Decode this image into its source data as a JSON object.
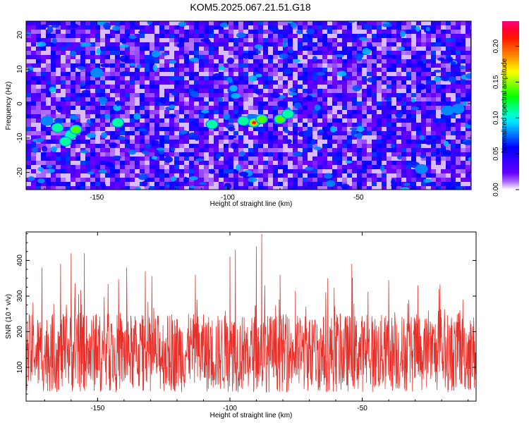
{
  "figure": {
    "title": "KOM5.2025.067.21.51.G18"
  },
  "chart_data": [
    {
      "type": "heatmap",
      "xlabel": "Height of straight line (km)",
      "ylabel": "Frequency (Hz)",
      "xlim": [
        -177,
        -7
      ],
      "ylim": [
        -25,
        24
      ],
      "x_ticks": [
        -150,
        -100,
        -50
      ],
      "y_ticks": [
        -20,
        -10,
        0,
        10,
        20
      ],
      "colorbar": {
        "label": "Normalized spectral amplitude",
        "range": [
          0,
          0.235
        ],
        "ticks": [
          0,
          0.05,
          0.1,
          0.15,
          0.2
        ],
        "tick_labels": [
          "0.00",
          "0.05",
          "0.10",
          "0.15",
          "0.20"
        ],
        "colormap": [
          "#ffffff",
          "#7000ff",
          "#0000ff",
          "#00ffff",
          "#00ff00",
          "#ffff00",
          "#ff8000",
          "#ff0000",
          "#ff0080"
        ]
      },
      "hotspots": [
        {
          "x": -90,
          "y": -5.5,
          "value": 0.22
        },
        {
          "x": -87,
          "y": -4.5,
          "value": 0.15
        },
        {
          "x": -80,
          "y": -4.5,
          "value": 0.14
        },
        {
          "x": -94,
          "y": -5,
          "value": 0.12
        },
        {
          "x": -77,
          "y": -3,
          "value": 0.11
        },
        {
          "x": -165,
          "y": -7,
          "value": 0.13
        },
        {
          "x": -160,
          "y": -9,
          "value": 0.13
        },
        {
          "x": -158,
          "y": -7.5,
          "value": 0.15
        },
        {
          "x": -162,
          "y": -11,
          "value": 0.12
        },
        {
          "x": -169,
          "y": -5,
          "value": 0.1
        },
        {
          "x": -106,
          "y": -6,
          "value": 0.11
        },
        {
          "x": -142,
          "y": -5.5,
          "value": 0.11
        },
        {
          "x": -16,
          "y": -2,
          "value": 0.1
        },
        {
          "x": -12,
          "y": -1.5,
          "value": 0.1
        },
        {
          "x": -150,
          "y": 9,
          "value": 0.08
        },
        {
          "x": -26,
          "y": -19,
          "value": 0.09
        },
        {
          "x": -115,
          "y": -22,
          "value": 0.07
        },
        {
          "x": -60,
          "y": -13,
          "value": 0.07
        },
        {
          "x": -130,
          "y": 13,
          "value": 0.06
        },
        {
          "x": -45,
          "y": 18,
          "value": 0.06
        }
      ]
    },
    {
      "type": "line",
      "xlabel": "Height of straight line (km)",
      "ylabel": "SNR (10 * v/v)",
      "xlim": [
        -177,
        -7
      ],
      "ylim": [
        5,
        480
      ],
      "x_ticks": [
        -150,
        -100,
        -50
      ],
      "y_ticks": [
        100,
        200,
        300,
        400
      ],
      "color": "#e8302a",
      "baseline_mean": 140,
      "peaks": [
        {
          "x": -88,
          "y": 475
        },
        {
          "x": -90,
          "y": 440
        },
        {
          "x": -98,
          "y": 430
        },
        {
          "x": -100,
          "y": 410
        },
        {
          "x": -155,
          "y": 420
        },
        {
          "x": -160,
          "y": 420
        },
        {
          "x": -164,
          "y": 390
        },
        {
          "x": -171,
          "y": 380
        },
        {
          "x": -139,
          "y": 380
        },
        {
          "x": -132,
          "y": 370
        },
        {
          "x": -113,
          "y": 360
        },
        {
          "x": -81,
          "y": 360
        },
        {
          "x": -54,
          "y": 390
        },
        {
          "x": -63,
          "y": 350
        },
        {
          "x": -40,
          "y": 345
        },
        {
          "x": -29,
          "y": 330
        },
        {
          "x": -21,
          "y": 320
        },
        {
          "x": -12,
          "y": 290
        }
      ]
    }
  ]
}
